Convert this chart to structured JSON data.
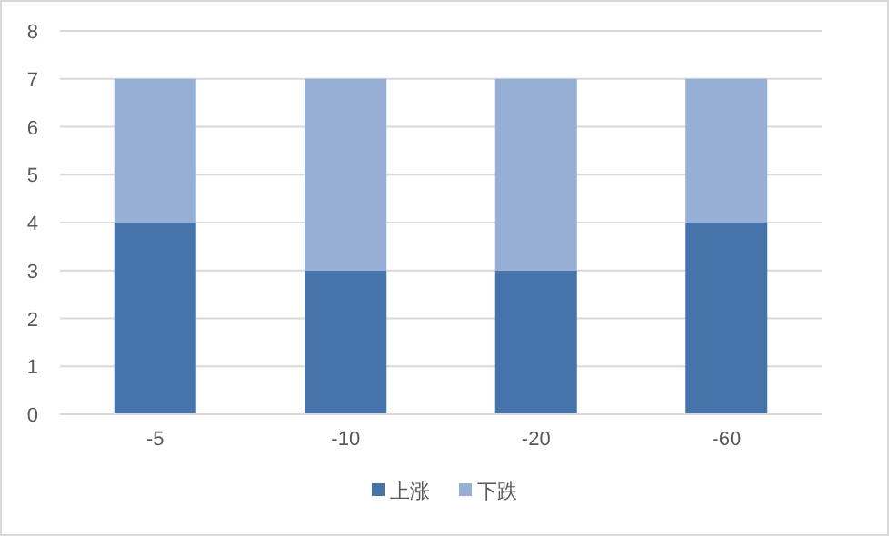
{
  "chart_data": {
    "type": "bar",
    "stacked": true,
    "categories": [
      "-5",
      "-10",
      "-20",
      "-60"
    ],
    "series": [
      {
        "name": "上涨",
        "color": "#4674aa",
        "values": [
          4,
          3,
          3,
          4
        ]
      },
      {
        "name": "下跌",
        "color": "#97aed5",
        "values": [
          3,
          4,
          4,
          3
        ]
      }
    ],
    "ylim": [
      0,
      8
    ],
    "yticks": [
      0,
      1,
      2,
      3,
      4,
      5,
      6,
      7,
      8
    ],
    "grid": "y",
    "legend": "bottom"
  }
}
